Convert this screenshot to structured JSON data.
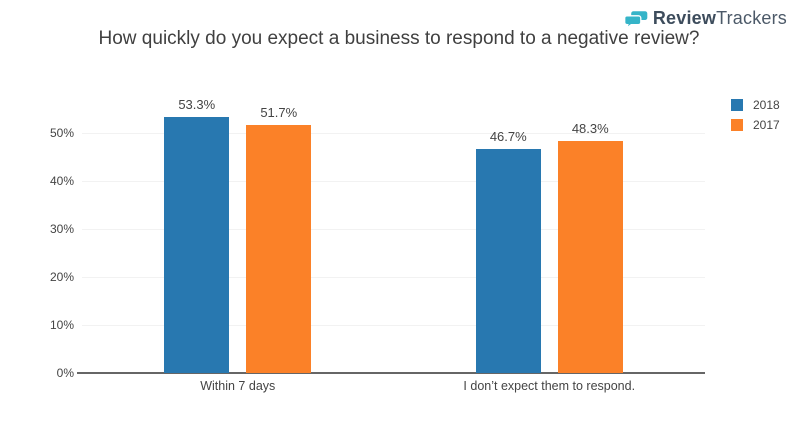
{
  "logo": {
    "brand_bold": "Review",
    "brand_light": "Trackers",
    "icon": "speech-bubbles-icon",
    "icon_color": "#35b4c8",
    "text_color": "#3d4c5c"
  },
  "chart_data": {
    "type": "bar",
    "title": "How quickly do you expect a business to respond to a negative review?",
    "categories": [
      "Within 7 days",
      "I don’t expect them to respond."
    ],
    "series": [
      {
        "name": "2018",
        "color": "#2878b0",
        "values": [
          53.3,
          46.7
        ],
        "labels": [
          "53.3%",
          "46.7%"
        ]
      },
      {
        "name": "2017",
        "color": "#fb8128",
        "values": [
          51.7,
          48.3
        ],
        "labels": [
          "51.7%",
          "48.3%"
        ]
      }
    ],
    "xlabel": "",
    "ylabel": "",
    "ytick_labels": [
      "0%",
      "10%",
      "20%",
      "30%",
      "40%",
      "50%"
    ],
    "ytick_values": [
      0,
      10,
      20,
      30,
      40,
      50
    ],
    "ylim": [
      0,
      60
    ],
    "grid": true,
    "gridline_color": "#f2f2f2",
    "axis_color": "#666666",
    "legend": [
      "2018",
      "2017"
    ],
    "legend_position": "outside-right-top"
  }
}
